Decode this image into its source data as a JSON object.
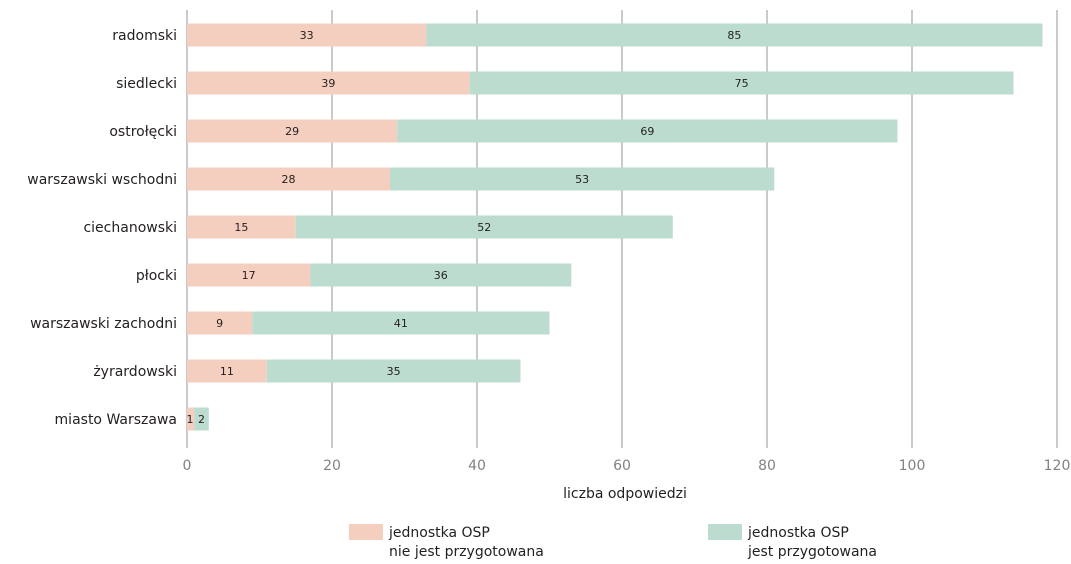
{
  "chart_data": {
    "type": "bar",
    "orientation": "horizontal",
    "stacked": true,
    "categories": [
      "radomski",
      "siedlecki",
      "ostrołęcki",
      "warszawski wschodni",
      "ciechanowski",
      "płocki",
      "warszawski zachodni",
      "żyrardowski",
      "miasto Warszawa"
    ],
    "series": [
      {
        "name": "jednostka OSP nie jest przygotowana",
        "legend_lines": [
          "jednostka OSP",
          "nie jest przygotowana"
        ],
        "color": "#f4cfc0",
        "values": [
          33,
          39,
          29,
          28,
          15,
          17,
          9,
          11,
          1
        ]
      },
      {
        "name": "jednostka OSP jest przygotowana",
        "legend_lines": [
          "jednostka OSP",
          "jest przygotowana"
        ],
        "color": "#bcdccf",
        "values": [
          85,
          75,
          69,
          53,
          52,
          36,
          41,
          35,
          2
        ]
      }
    ],
    "xlabel": "liczba odpowiedzi",
    "ylabel": "",
    "title": "",
    "xlim": [
      0,
      120
    ],
    "xticks": [
      0,
      20,
      40,
      60,
      80,
      100,
      120
    ],
    "grid": "vertical",
    "legend_position": "bottom"
  }
}
